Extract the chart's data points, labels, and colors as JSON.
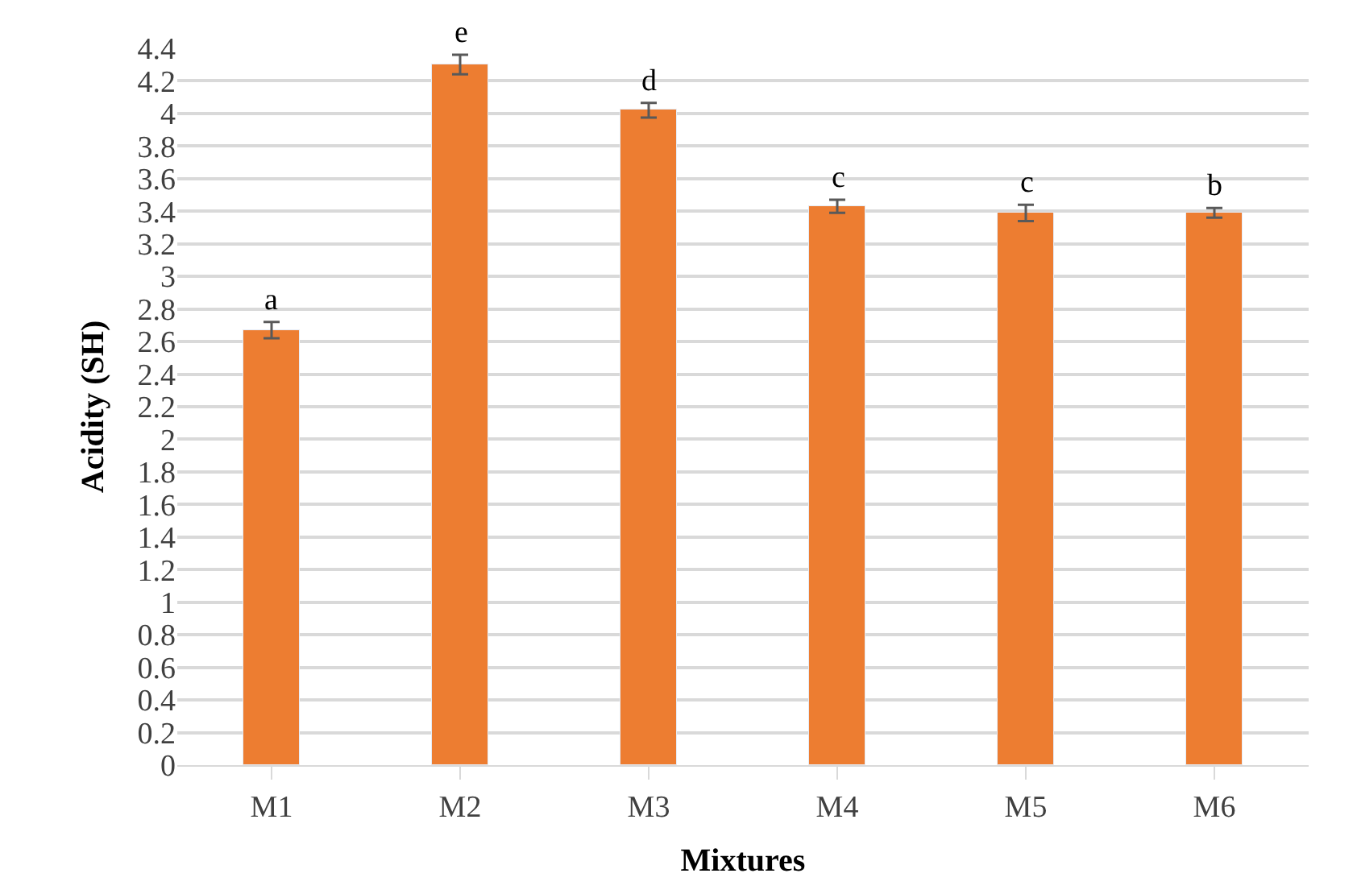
{
  "chart_data": {
    "type": "bar",
    "xlabel": "Mixtures",
    "ylabel": "Acidity (SH)",
    "categories": [
      "M1",
      "M2",
      "M3",
      "M4",
      "M5",
      "M6"
    ],
    "values": [
      2.67,
      4.3,
      4.02,
      3.43,
      3.39,
      3.39
    ],
    "errors": [
      0.05,
      0.06,
      0.045,
      0.04,
      0.05,
      0.03
    ],
    "color": "#ed7d31",
    "ylim": [
      0,
      4.4
    ],
    "yticks": [
      0,
      0.2,
      0.4,
      0.6,
      0.8,
      1,
      1.2,
      1.4,
      1.6,
      1.8,
      2,
      2.2,
      2.4,
      2.6,
      2.8,
      3,
      3.2,
      3.4,
      3.6,
      3.8,
      4,
      4.2,
      4.4
    ],
    "grid": "y",
    "annotations": [
      {
        "text": "a",
        "x": "M1",
        "y": 2.67
      },
      {
        "text": "e",
        "x": "M2",
        "y": 4.3
      },
      {
        "text": "d",
        "x": "M3",
        "y": 4.02
      },
      {
        "text": "c",
        "x": "M4",
        "y": 3.43
      },
      {
        "text": "c",
        "x": "M5",
        "y": 3.39
      },
      {
        "text": "b",
        "x": "M6",
        "y": 3.39
      }
    ]
  }
}
